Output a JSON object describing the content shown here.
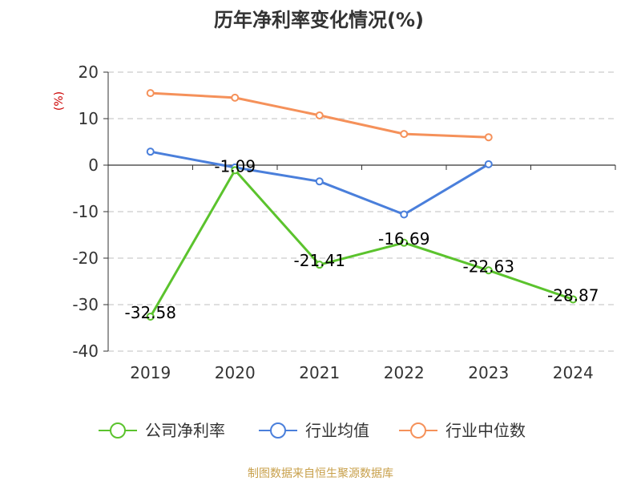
{
  "chart_data": {
    "type": "line",
    "title": "历年净利率变化情况(%)",
    "ylabel": "(%)",
    "categories": [
      "2019",
      "2020",
      "2021",
      "2022",
      "2023",
      "2024"
    ],
    "ylim": [
      -40,
      20
    ],
    "yticks": [
      20,
      10,
      0,
      -10,
      -20,
      -30,
      -40
    ],
    "grid": true,
    "legend_position": "bottom",
    "series": [
      {
        "name": "公司净利率",
        "color": "#5bc32d",
        "values": [
          -32.58,
          -1.09,
          -21.41,
          -16.69,
          -22.63,
          -28.87
        ],
        "labels": [
          "-32.58",
          "-1.09",
          "-21.41",
          "-16.69",
          "-22.63",
          "-28.87"
        ]
      },
      {
        "name": "行业均值",
        "color": "#4a7fdb",
        "values": [
          2.9,
          -0.5,
          -3.5,
          -10.6,
          0.2,
          null
        ]
      },
      {
        "name": "行业中位数",
        "color": "#f5915a",
        "values": [
          15.5,
          14.5,
          10.7,
          6.7,
          6.0,
          null
        ]
      }
    ]
  },
  "source": {
    "text": "制图数据来自恒生聚源数据库",
    "color": "#c8a04b"
  },
  "ylabel_color": "#cc0000"
}
